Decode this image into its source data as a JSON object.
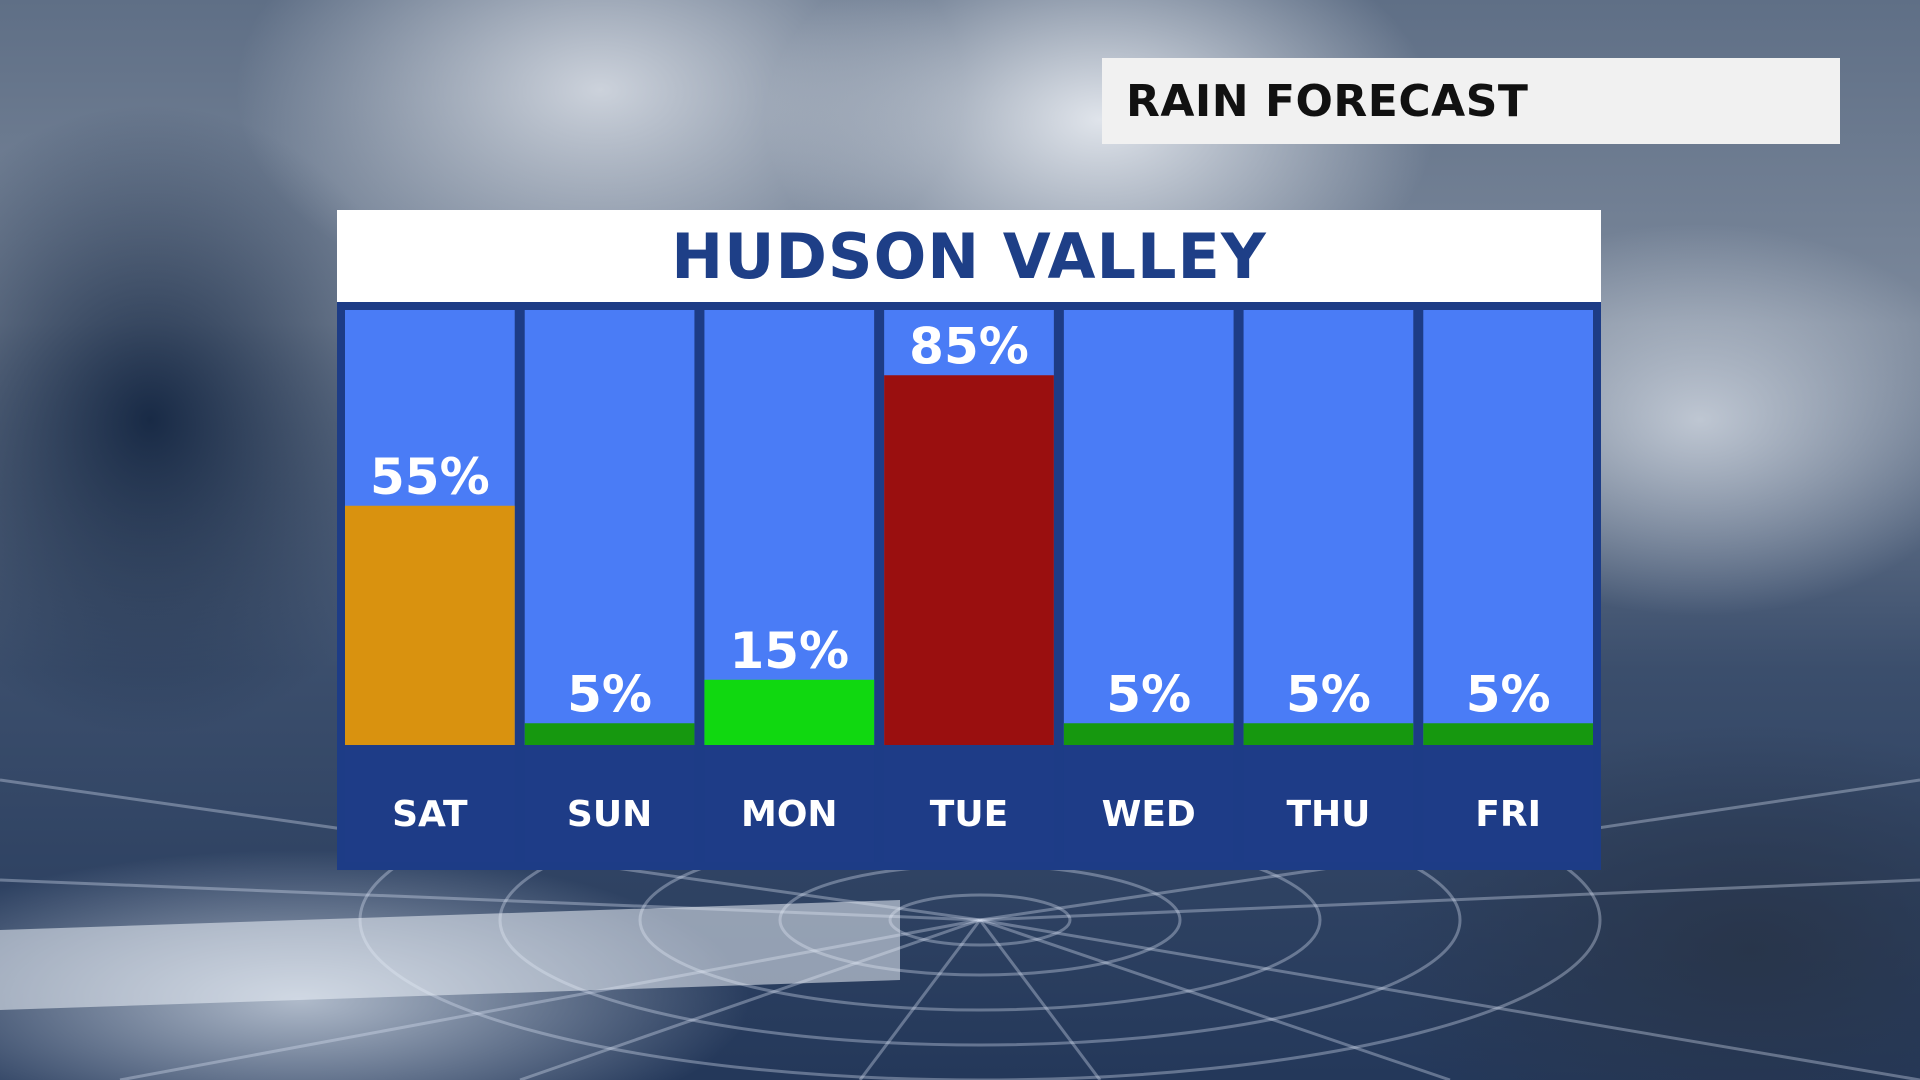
{
  "title": "RAIN FORECAST",
  "location": "HUDSON VALLEY",
  "colors": {
    "column_bg": "#4a7cf6",
    "day_bg": "#1e3c87",
    "panel_border": "#1d3c86",
    "header_text": "#1e3f87"
  },
  "chart_data": {
    "type": "bar",
    "title": "HUDSON VALLEY",
    "categories": [
      "SAT",
      "SUN",
      "MON",
      "TUE",
      "WED",
      "THU",
      "FRI"
    ],
    "values": [
      55,
      5,
      15,
      85,
      5,
      5,
      5
    ],
    "labels": [
      "55%",
      "5%",
      "15%",
      "85%",
      "5%",
      "5%",
      "5%"
    ],
    "bar_colors": [
      "#d9920f",
      "#16980f",
      "#10d810",
      "#9a0f0f",
      "#16980f",
      "#16980f",
      "#16980f"
    ],
    "ylim": [
      0,
      100
    ],
    "grid": false,
    "legend": "none"
  }
}
